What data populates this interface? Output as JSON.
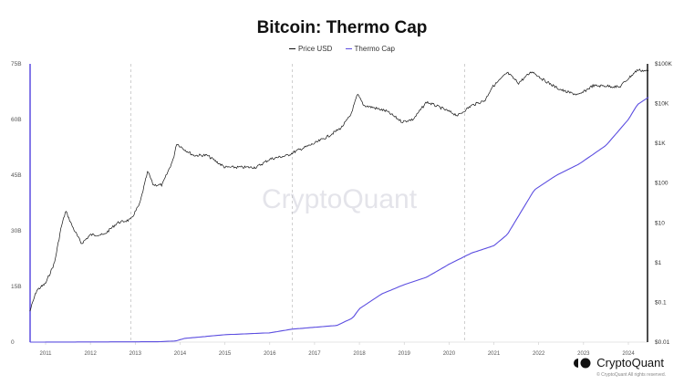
{
  "chart_data": {
    "type": "line",
    "title": "Bitcoin: Thermo Cap",
    "legend_placement": "top-center",
    "x_ticks": [
      "2011",
      "2012",
      "2013",
      "2014",
      "2015",
      "2016",
      "2017",
      "2018",
      "2019",
      "2020",
      "2021",
      "2022",
      "2023",
      "2024"
    ],
    "y_left": {
      "ticks": [
        "0",
        "15B",
        "30B",
        "45B",
        "60B",
        "75B"
      ],
      "range": [
        0,
        75
      ],
      "unit": "B"
    },
    "y_right": {
      "scale": "log",
      "ticks": [
        "$0.01",
        "$0.1",
        "$1",
        "$10",
        "$100",
        "$1K",
        "$10K",
        "$100K"
      ],
      "range": [
        0.01,
        100000
      ]
    },
    "x_range": [
      2010.65,
      2024.45
    ],
    "vertical_markers": [
      2012.9,
      2016.5,
      2020.35
    ],
    "grid": false,
    "series": [
      {
        "name": "Price USD",
        "axis": "right",
        "color": "#111111",
        "x": [
          2010.65,
          2010.8,
          2011.0,
          2011.2,
          2011.35,
          2011.45,
          2011.6,
          2011.8,
          2012.0,
          2012.3,
          2012.6,
          2012.9,
          2013.1,
          2013.28,
          2013.4,
          2013.6,
          2013.85,
          2013.92,
          2014.1,
          2014.3,
          2014.6,
          2015.0,
          2015.3,
          2015.7,
          2016.0,
          2016.4,
          2016.6,
          2017.0,
          2017.3,
          2017.6,
          2017.8,
          2017.96,
          2018.1,
          2018.3,
          2018.6,
          2018.95,
          2019.2,
          2019.5,
          2019.8,
          2020.2,
          2020.5,
          2020.8,
          2020.95,
          2021.3,
          2021.55,
          2021.85,
          2022.1,
          2022.4,
          2022.6,
          2022.9,
          2023.2,
          2023.5,
          2023.8,
          2024.0,
          2024.2,
          2024.45
        ],
        "values": [
          0.06,
          0.2,
          0.3,
          1,
          8,
          20,
          8,
          3,
          5,
          5,
          10,
          12,
          30,
          200,
          90,
          90,
          400,
          1000,
          700,
          500,
          500,
          250,
          250,
          250,
          400,
          500,
          650,
          1000,
          1500,
          2500,
          5000,
          17000,
          9000,
          8000,
          6500,
          3500,
          4000,
          11000,
          8000,
          5000,
          9000,
          12000,
          25000,
          60000,
          33000,
          65000,
          40000,
          25000,
          20000,
          16500,
          28000,
          28000,
          26000,
          43000,
          70000,
          66000
        ]
      },
      {
        "name": "Thermo Cap",
        "axis": "left",
        "color": "#5b4de0",
        "x": [
          2010.65,
          2013.5,
          2013.9,
          2014.1,
          2015.0,
          2016.0,
          2016.5,
          2017.5,
          2017.85,
          2018.0,
          2018.5,
          2019.0,
          2019.5,
          2020.0,
          2020.5,
          2021.0,
          2021.1,
          2021.3,
          2021.5,
          2021.9,
          2022.4,
          2022.9,
          2023.5,
          2024.0,
          2024.2,
          2024.45
        ],
        "values": [
          0,
          0.1,
          0.3,
          1,
          2,
          2.5,
          3.5,
          4.5,
          6.5,
          9,
          13,
          15.5,
          17.5,
          21,
          24,
          26,
          27,
          29,
          33,
          41,
          45,
          48,
          53,
          60,
          64,
          66
        ]
      }
    ]
  },
  "legend": {
    "price_label": "Price USD",
    "thermo_label": "Thermo Cap"
  },
  "watermark": "CryptoQuant",
  "footer": {
    "brand": "CryptoQuant",
    "copyright": "© CryptoQuant All rights reserved."
  }
}
